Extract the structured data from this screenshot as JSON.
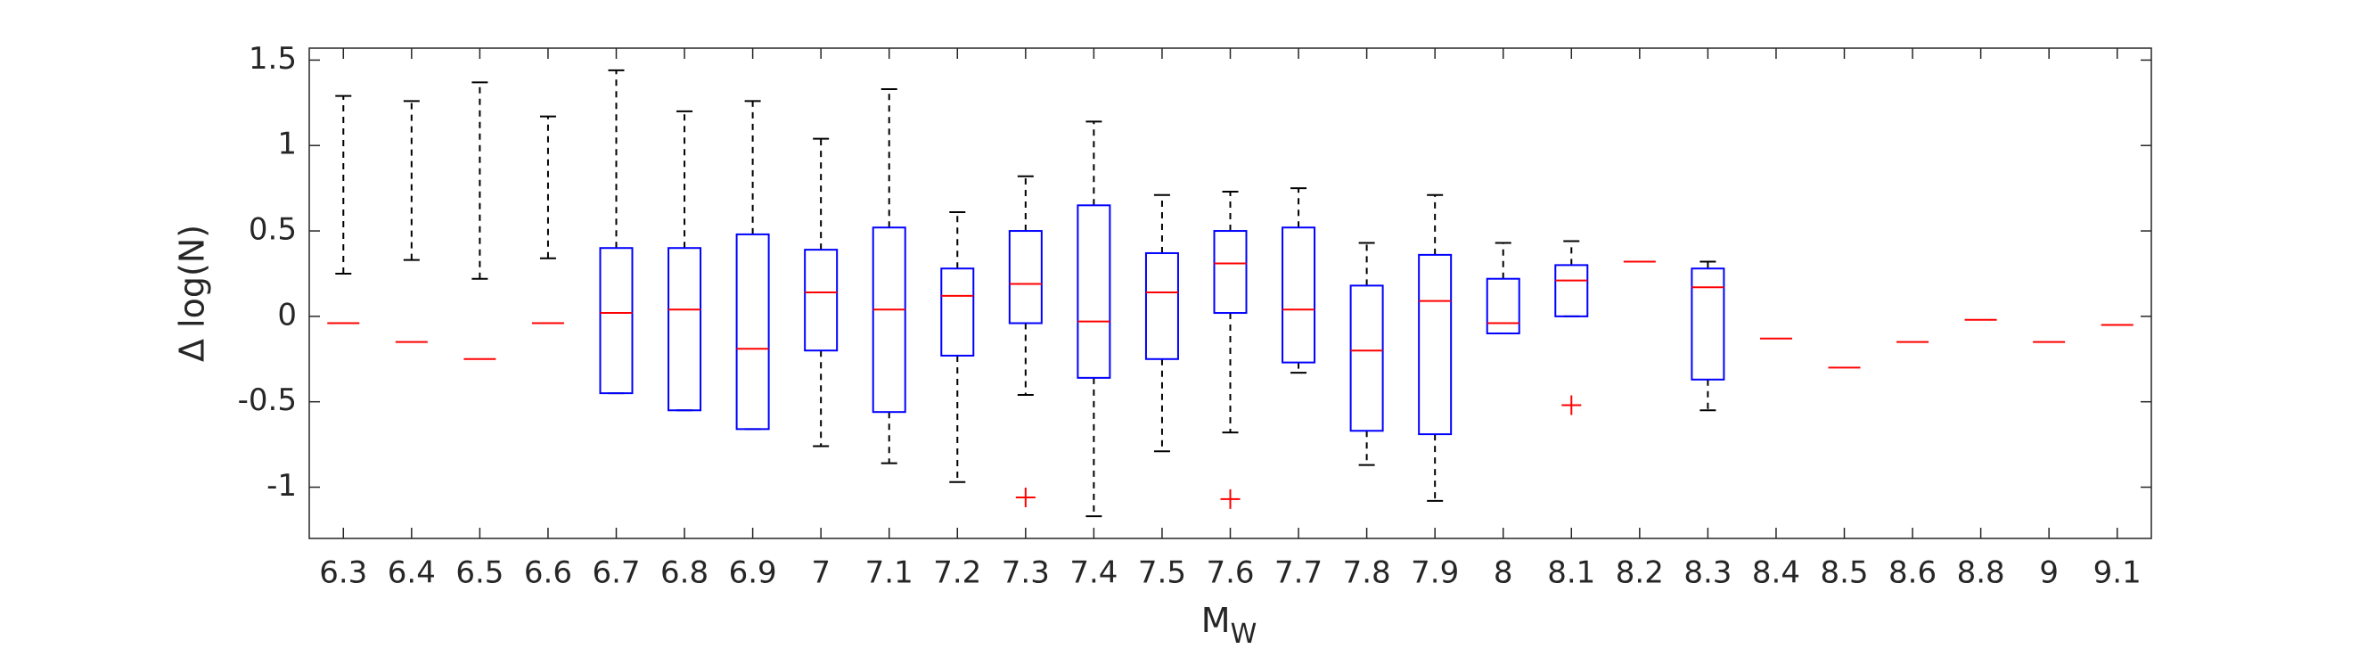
{
  "chart_data": {
    "type": "box",
    "categories": [
      "6.3",
      "6.4",
      "6.5",
      "6.6",
      "6.7",
      "6.8",
      "6.9",
      "7",
      "7.1",
      "7.2",
      "7.3",
      "7.4",
      "7.5",
      "7.6",
      "7.7",
      "7.8",
      "7.9",
      "8",
      "8.1",
      "8.2",
      "8.3",
      "8.4",
      "8.5",
      "8.6",
      "8.8",
      "9",
      "9.1"
    ],
    "whisker_low": [
      0.25,
      0.33,
      0.22,
      0.34,
      -0.45,
      -0.55,
      -0.66,
      -0.76,
      -0.86,
      -0.97,
      -0.46,
      -1.17,
      -0.79,
      -0.68,
      -0.33,
      -0.87,
      -1.08,
      -0.1,
      0.0,
      null,
      -0.55,
      null,
      null,
      null,
      null,
      null,
      null
    ],
    "q1": [
      0.25,
      0.33,
      0.22,
      0.34,
      -0.45,
      -0.55,
      -0.66,
      -0.2,
      -0.56,
      -0.23,
      -0.04,
      -0.36,
      -0.25,
      0.02,
      -0.27,
      -0.67,
      -0.69,
      -0.1,
      0.0,
      null,
      -0.37,
      null,
      null,
      null,
      null,
      null,
      null
    ],
    "median": [
      -0.04,
      -0.15,
      -0.25,
      -0.04,
      0.02,
      0.04,
      -0.19,
      0.14,
      0.04,
      0.12,
      0.19,
      -0.03,
      0.14,
      0.31,
      0.04,
      -0.2,
      0.09,
      -0.04,
      0.21,
      0.32,
      0.17,
      -0.13,
      -0.3,
      -0.15,
      -0.02,
      -0.15,
      -0.05
    ],
    "q3": [
      0.25,
      0.33,
      0.22,
      0.34,
      0.4,
      0.4,
      0.48,
      0.39,
      0.52,
      0.28,
      0.5,
      0.65,
      0.37,
      0.5,
      0.52,
      0.18,
      0.36,
      0.22,
      0.3,
      null,
      0.28,
      null,
      null,
      null,
      null,
      null,
      null
    ],
    "whisker_high": [
      1.29,
      1.26,
      1.37,
      1.17,
      1.44,
      1.2,
      1.26,
      1.04,
      1.33,
      0.61,
      0.82,
      1.14,
      0.71,
      0.73,
      0.75,
      0.43,
      0.71,
      0.43,
      0.44,
      null,
      0.32,
      null,
      null,
      null,
      null,
      null,
      null
    ],
    "outliers": [
      [],
      [],
      [],
      [],
      [],
      [],
      [],
      [],
      [],
      [],
      [
        -1.06
      ],
      [],
      [],
      [
        -1.07
      ],
      [],
      [],
      [],
      [],
      [
        -0.52
      ],
      [],
      [],
      [],
      [],
      [],
      [],
      [],
      []
    ],
    "xlabel": "M",
    "xlabel_subscript": "W",
    "ylabel": "Δ log(N)",
    "ylim": [
      -1.3,
      1.57
    ],
    "yticks": [
      -1,
      -0.5,
      0,
      0.5,
      1,
      1.5
    ],
    "box_color": "#0000ff",
    "median_color": "#ff0000",
    "whisker_color": "#000000",
    "outlier_color": "#ff0000"
  }
}
